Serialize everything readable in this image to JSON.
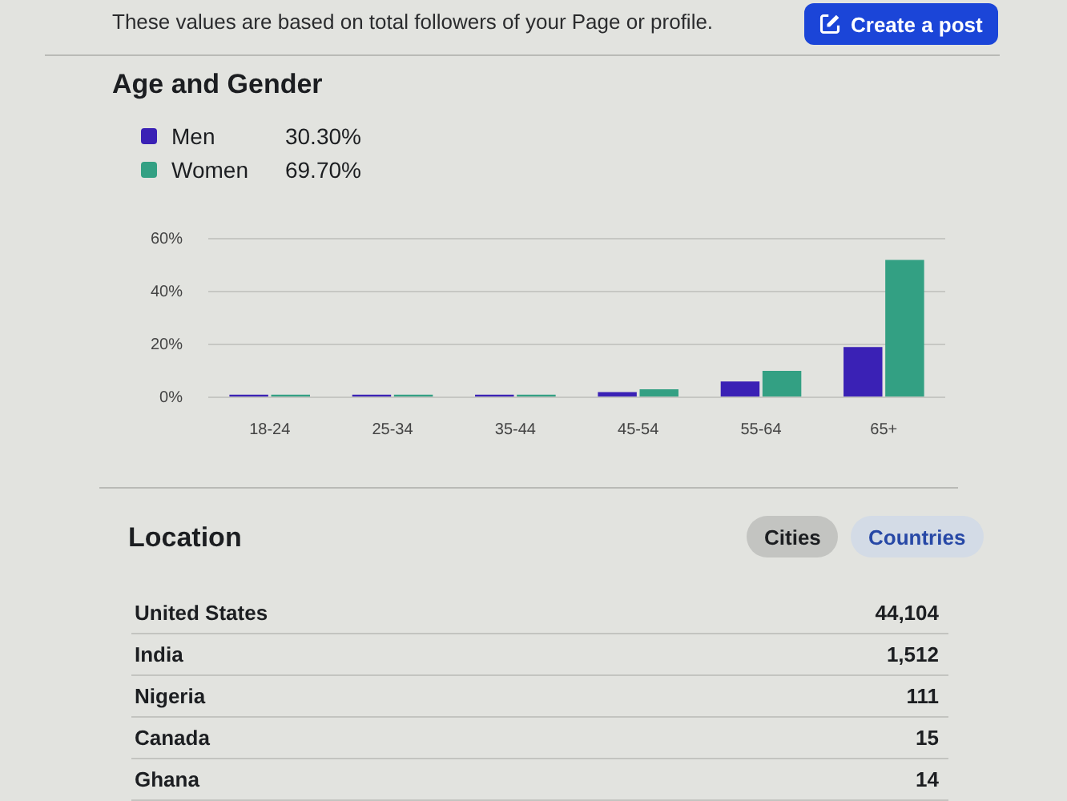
{
  "chart_data": [
    {
      "type": "bar",
      "title": "Age and Gender",
      "categories": [
        "18-24",
        "25-34",
        "35-44",
        "45-54",
        "55-64",
        "65+"
      ],
      "series": [
        {
          "name": "Men",
          "color": "#3a21b5",
          "values": [
            1,
            1,
            1,
            2,
            6,
            19
          ]
        },
        {
          "name": "Women",
          "color": "#33a083",
          "values": [
            1,
            1,
            1,
            3,
            10,
            52
          ]
        }
      ],
      "ylim": [
        0,
        60
      ],
      "yticks": [
        {
          "value": 0,
          "label": "0%"
        },
        {
          "value": 20,
          "label": "20%"
        },
        {
          "value": 40,
          "label": "40%"
        },
        {
          "value": 60,
          "label": "60%"
        }
      ],
      "grid": "y",
      "legend": "top left",
      "annotations": [
        "These values are based on total followers of your Page or profile.",
        "Create a post",
        "30.30%",
        "69.70%"
      ]
    },
    {
      "type": "other",
      "title": "Location",
      "categories": [
        "United States",
        "India",
        "Nigeria",
        "Canada",
        "Ghana"
      ],
      "values": [
        44104,
        1512,
        111,
        15,
        14
      ],
      "value_labels": [
        "44,104",
        "1,512",
        "111",
        "15",
        "14"
      ],
      "annotations": [
        "Cities",
        "Countries"
      ]
    }
  ]
}
